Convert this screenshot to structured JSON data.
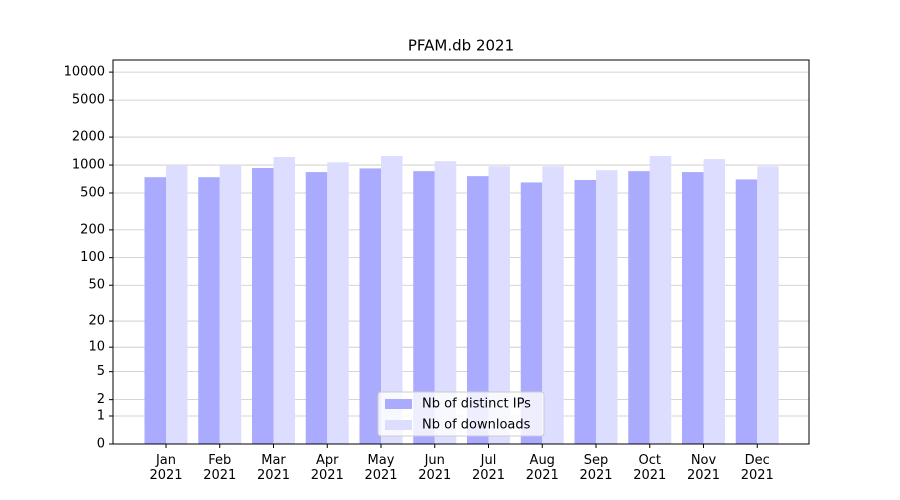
{
  "chart_data": {
    "type": "bar",
    "title": "PFAM.db 2021",
    "categories": [
      "Jan\n2021",
      "Feb\n2021",
      "Mar\n2021",
      "Apr\n2021",
      "May\n2021",
      "Jun\n2021",
      "Jul\n2021",
      "Aug\n2021",
      "Sep\n2021",
      "Oct\n2021",
      "Nov\n2021",
      "Dec\n2021"
    ],
    "series": [
      {
        "name": "Nb of distinct IPs",
        "color": "#aaaaff",
        "values": [
          740,
          740,
          930,
          840,
          920,
          860,
          760,
          650,
          690,
          860,
          840,
          700
        ]
      },
      {
        "name": "Nb of downloads",
        "color": "#ddddff",
        "values": [
          1000,
          1000,
          1220,
          1070,
          1250,
          1100,
          970,
          970,
          880,
          1250,
          1160,
          970
        ]
      }
    ],
    "yscale": "log1p",
    "ylim": [
      0,
      13500
    ],
    "yticks": [
      0,
      1,
      2,
      5,
      10,
      20,
      50,
      100,
      200,
      500,
      1000,
      2000,
      5000,
      10000
    ],
    "grid": true,
    "legend": "lower center"
  }
}
